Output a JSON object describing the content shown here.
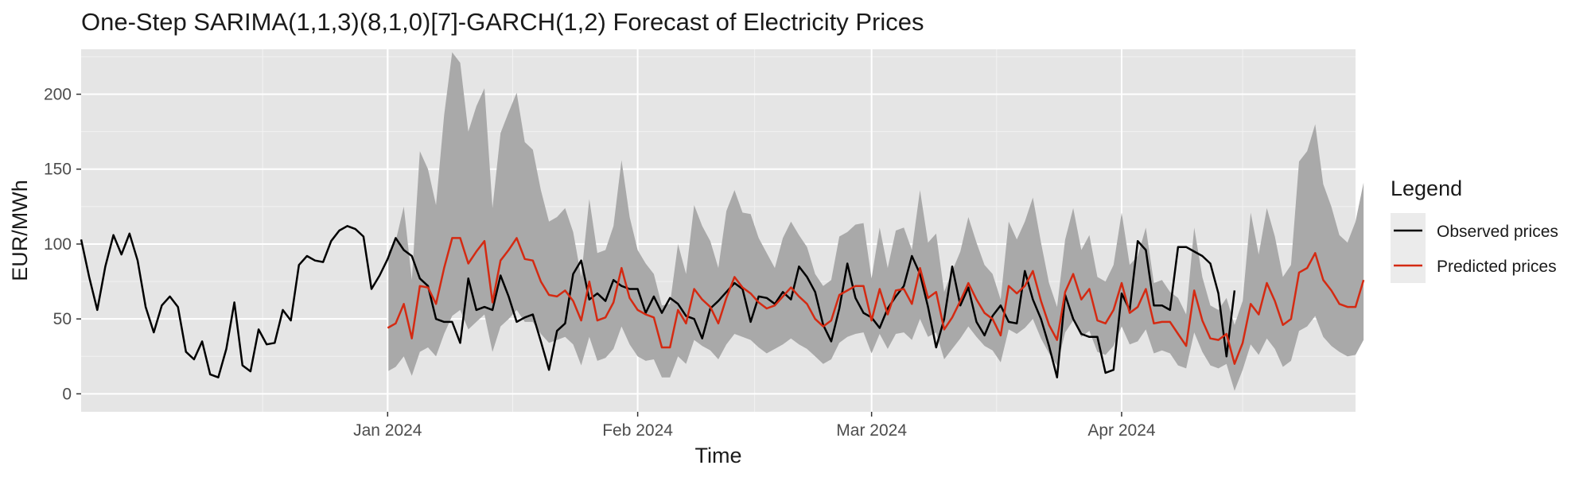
{
  "colors": {
    "panel": "#e5e5e5",
    "grid_major": "#ffffff",
    "grid_minor": "#f2f2f2",
    "band": "#a9a9a9",
    "observed": "#000000",
    "predicted": "#d42a12",
    "text": "#1a1a1a",
    "tick_text": "#4d4d4d",
    "key_background": "#ebebeb"
  },
  "chart_data": {
    "type": "line",
    "title": "One-Step SARIMA(1,1,3)(8,1,0)[7]-GARCH(1,2) Forecast of Electricity Prices",
    "xlabel": "Time",
    "ylabel": "EUR/MWh",
    "x_axis": {
      "type": "date",
      "range": [
        "2023-11-24",
        "2024-04-30"
      ],
      "ticks": [
        {
          "date": "2024-01-01",
          "label": "Jan 2024"
        },
        {
          "date": "2024-02-01",
          "label": "Feb 2024"
        },
        {
          "date": "2024-03-01",
          "label": "Mar 2024"
        },
        {
          "date": "2024-04-01",
          "label": "Apr 2024"
        }
      ],
      "forecast_start_marker": "2024-01-01"
    },
    "y_axis": {
      "range": [
        -12,
        230
      ],
      "ticks": [
        0,
        50,
        100,
        150,
        200
      ],
      "minor_ticks": [
        25,
        75,
        125,
        175,
        225
      ]
    },
    "grid": true,
    "legend": {
      "title": "Legend",
      "position": "right",
      "entries": [
        "Observed prices",
        "Predicted prices"
      ]
    },
    "observed": {
      "name": "Observed prices",
      "start_date": "2023-11-24",
      "values": [
        103,
        78,
        56,
        85,
        106,
        93,
        107,
        89,
        58,
        41,
        59,
        65,
        58,
        28,
        23,
        35,
        13,
        11,
        30,
        61,
        19,
        15,
        43,
        33,
        34,
        56,
        49,
        86,
        92,
        89,
        88,
        102,
        109,
        112,
        110,
        105,
        70,
        79,
        90,
        104,
        96,
        92,
        77,
        72,
        50,
        48,
        48,
        34,
        77,
        56,
        58,
        56,
        79,
        65,
        48,
        51,
        53,
        35,
        16,
        42,
        47,
        80,
        89,
        63,
        67,
        62,
        76,
        72,
        70,
        70,
        54,
        65,
        54,
        64,
        60,
        52,
        50,
        37,
        57,
        62,
        68,
        74,
        70,
        48,
        65,
        64,
        60,
        68,
        63,
        85,
        78,
        68,
        46,
        35,
        57,
        87,
        64,
        54,
        51,
        44,
        57,
        65,
        72,
        92,
        80,
        58,
        31,
        50,
        85,
        59,
        71,
        48,
        39,
        52,
        59,
        48,
        47,
        82,
        63,
        50,
        32,
        11,
        66,
        50,
        40,
        38,
        38,
        14,
        16,
        67,
        56,
        102,
        96,
        59,
        59,
        56,
        98,
        98,
        95,
        92,
        87,
        67,
        25,
        69
      ]
    },
    "predicted": {
      "name": "Predicted prices",
      "start_date": "2024-01-01",
      "values": [
        44,
        47,
        60,
        37,
        72,
        71,
        60,
        84,
        104,
        104,
        87,
        95,
        102,
        61,
        89,
        96,
        104,
        90,
        89,
        75,
        66,
        65,
        69,
        62,
        49,
        75,
        49,
        51,
        61,
        84,
        64,
        56,
        53,
        51,
        31,
        31,
        56,
        47,
        70,
        63,
        58,
        47,
        64,
        78,
        71,
        67,
        61,
        57,
        59,
        65,
        71,
        65,
        60,
        50,
        45,
        49,
        66,
        69,
        72,
        72,
        49,
        70,
        53,
        69,
        70,
        60,
        84,
        64,
        68,
        43,
        51,
        62,
        74,
        63,
        54,
        50,
        39,
        72,
        67,
        72,
        82,
        62,
        46,
        36,
        68,
        80,
        63,
        70,
        49,
        47,
        56,
        74,
        54,
        58,
        70,
        47,
        48,
        48,
        40,
        32,
        69,
        49,
        37,
        36,
        40,
        20,
        34,
        60,
        53,
        74,
        62,
        46,
        50,
        81,
        84,
        94,
        76,
        69,
        60,
        58,
        58,
        76
      ]
    },
    "interval_upper": {
      "start_date": "2024-01-01",
      "values": [
        94,
        102,
        125,
        76,
        162,
        150,
        126,
        186,
        228,
        221,
        175,
        192,
        204,
        124,
        174,
        188,
        201,
        168,
        163,
        136,
        115,
        118,
        124,
        108,
        78,
        130,
        94,
        96,
        112,
        156,
        118,
        96,
        87,
        80,
        59,
        60,
        100,
        80,
        126,
        112,
        102,
        84,
        122,
        136,
        121,
        120,
        104,
        94,
        84,
        104,
        115,
        106,
        98,
        80,
        72,
        76,
        105,
        108,
        113,
        114,
        77,
        111,
        84,
        109,
        111,
        96,
        136,
        101,
        107,
        68,
        82,
        95,
        118,
        101,
        86,
        80,
        63,
        115,
        103,
        115,
        131,
        101,
        74,
        58,
        103,
        124,
        96,
        106,
        78,
        75,
        86,
        121,
        86,
        92,
        111,
        74,
        76,
        68,
        64,
        53,
        111,
        78,
        59,
        56,
        64,
        46,
        62,
        121,
        93,
        124,
        105,
        78,
        86,
        155,
        162,
        180,
        140,
        125,
        106,
        101,
        115,
        141
      ]
    },
    "interval_lower": {
      "start_date": "2024-01-01",
      "values": [
        15,
        18,
        25,
        12,
        28,
        31,
        25,
        40,
        52,
        56,
        43,
        48,
        53,
        28,
        45,
        50,
        56,
        48,
        48,
        40,
        34,
        36,
        38,
        33,
        19,
        38,
        22,
        24,
        30,
        45,
        33,
        25,
        22,
        23,
        11,
        11,
        25,
        20,
        36,
        32,
        29,
        23,
        33,
        40,
        38,
        36,
        31,
        27,
        30,
        33,
        37,
        33,
        30,
        25,
        20,
        23,
        34,
        38,
        40,
        41,
        27,
        40,
        30,
        40,
        41,
        36,
        50,
        38,
        41,
        23,
        30,
        37,
        45,
        38,
        32,
        29,
        21,
        43,
        40,
        44,
        50,
        37,
        27,
        19,
        41,
        49,
        38,
        42,
        28,
        26,
        32,
        45,
        33,
        35,
        43,
        27,
        29,
        27,
        19,
        17,
        41,
        28,
        19,
        17,
        20,
        2,
        16,
        33,
        26,
        37,
        30,
        18,
        22,
        42,
        45,
        52,
        38,
        32,
        28,
        25,
        26,
        36
      ]
    }
  }
}
